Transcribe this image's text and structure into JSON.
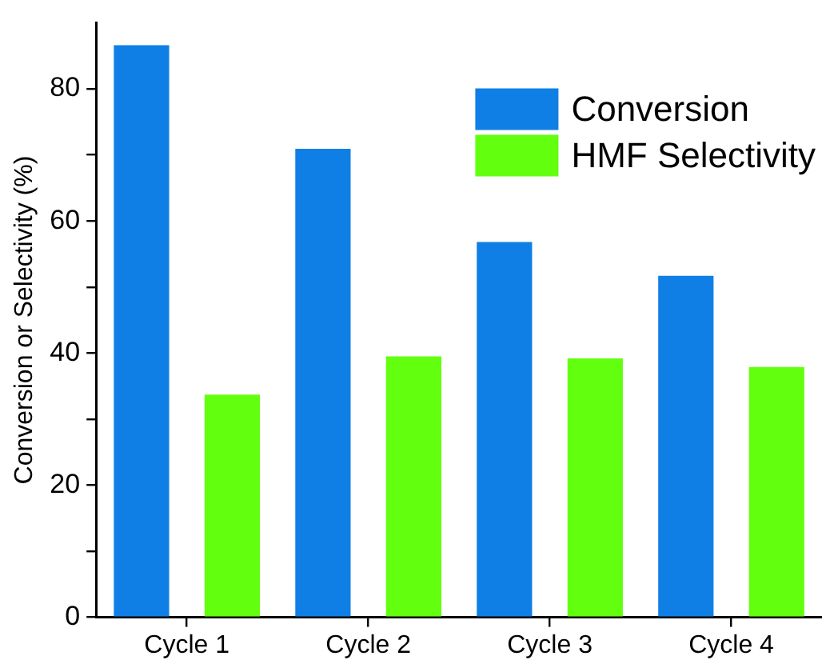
{
  "chart_data": {
    "type": "bar",
    "ylabel": "Conversion or Selectivity (%)",
    "categories": [
      "Cycle 1",
      "Cycle 2",
      "Cycle 3",
      "Cycle 4"
    ],
    "series": [
      {
        "name": "Conversion",
        "color": "#0f7fe6",
        "values": [
          86.6,
          70.9,
          56.8,
          51.7
        ]
      },
      {
        "name": "HMF Selectivity",
        "color": "#62ff0f",
        "values": [
          33.7,
          39.5,
          39.2,
          37.9
        ]
      }
    ],
    "ylim": [
      0,
      90
    ],
    "yticks": [
      0,
      {
        "value": 10,
        "label": null
      },
      20,
      {
        "value": 30,
        "label": null
      },
      40,
      {
        "value": 50,
        "label": null
      },
      60,
      {
        "value": 70,
        "label": null
      },
      80
    ],
    "grid": false,
    "legend": "top right"
  }
}
